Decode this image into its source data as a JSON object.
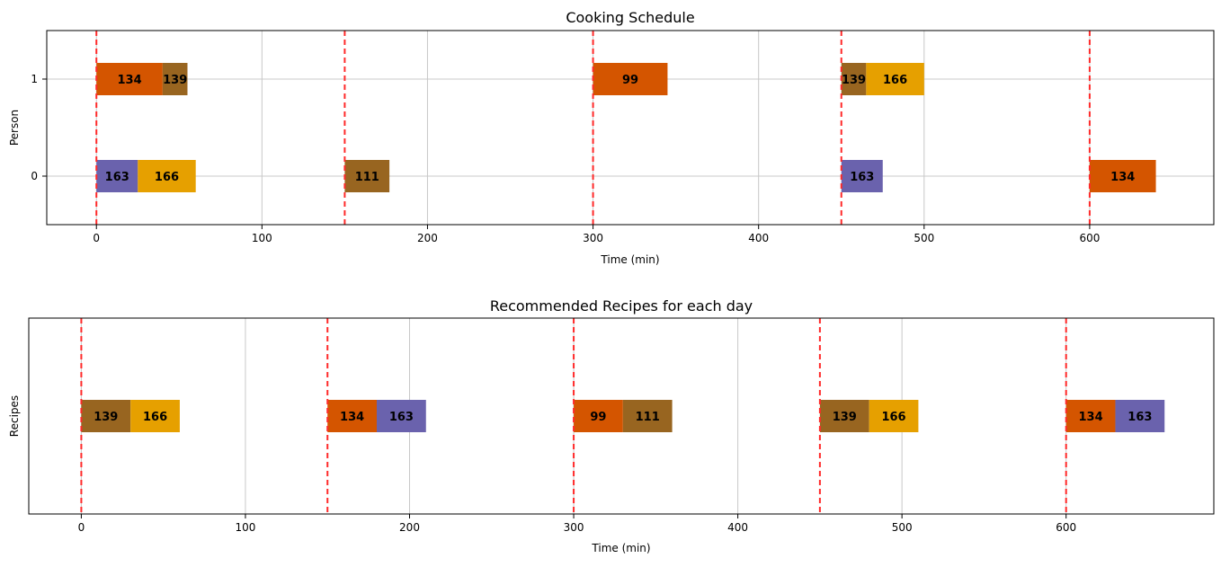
{
  "chart_data": [
    {
      "type": "gantt",
      "title": "Cooking Schedule",
      "xlabel": "Time (min)",
      "ylabel": "Person",
      "xlim": [
        -30,
        675
      ],
      "ylim": [
        -0.5,
        1.5
      ],
      "xticks": [
        0,
        100,
        200,
        300,
        400,
        500,
        600
      ],
      "yticks": [
        0,
        1
      ],
      "grid": true,
      "day_lines": [
        0,
        150,
        300,
        450,
        600
      ],
      "bars": [
        {
          "person": 1,
          "start": 0,
          "duration": 40,
          "label": "134",
          "color": "#d45500"
        },
        {
          "person": 1,
          "start": 40,
          "duration": 15,
          "label": "139",
          "color": "#986520"
        },
        {
          "person": 1,
          "start": 300,
          "duration": 45,
          "label": "99",
          "color": "#d45500"
        },
        {
          "person": 1,
          "start": 450,
          "duration": 15,
          "label": "139",
          "color": "#986520"
        },
        {
          "person": 1,
          "start": 465,
          "duration": 35,
          "label": "166",
          "color": "#e6a000"
        },
        {
          "person": 0,
          "start": 0,
          "duration": 25,
          "label": "163",
          "color": "#6a62ad"
        },
        {
          "person": 0,
          "start": 25,
          "duration": 35,
          "label": "166",
          "color": "#e6a000"
        },
        {
          "person": 0,
          "start": 150,
          "duration": 27,
          "label": "111",
          "color": "#986520"
        },
        {
          "person": 0,
          "start": 450,
          "duration": 25,
          "label": "163",
          "color": "#6a62ad"
        },
        {
          "person": 0,
          "start": 600,
          "duration": 40,
          "label": "134",
          "color": "#d45500"
        }
      ]
    },
    {
      "type": "gantt",
      "title": "Recommended Recipes for each day",
      "xlabel": "Time (min)",
      "ylabel": "Recipes",
      "xlim": [
        -32,
        690
      ],
      "xticks": [
        0,
        100,
        200,
        300,
        400,
        500,
        600
      ],
      "grid": true,
      "day_lines": [
        0,
        150,
        300,
        450,
        600
      ],
      "bars": [
        {
          "start": 0,
          "duration": 30,
          "label": "139",
          "color": "#986520"
        },
        {
          "start": 30,
          "duration": 30,
          "label": "166",
          "color": "#e6a000"
        },
        {
          "start": 150,
          "duration": 30,
          "label": "134",
          "color": "#d45500"
        },
        {
          "start": 180,
          "duration": 30,
          "label": "163",
          "color": "#6a62ad"
        },
        {
          "start": 300,
          "duration": 30,
          "label": "99",
          "color": "#d45500"
        },
        {
          "start": 330,
          "duration": 30,
          "label": "111",
          "color": "#986520"
        },
        {
          "start": 450,
          "duration": 30,
          "label": "139",
          "color": "#986520"
        },
        {
          "start": 480,
          "duration": 30,
          "label": "166",
          "color": "#e6a000"
        },
        {
          "start": 600,
          "duration": 30,
          "label": "134",
          "color": "#d45500"
        },
        {
          "start": 630,
          "duration": 30,
          "label": "163",
          "color": "#6a62ad"
        }
      ]
    }
  ]
}
